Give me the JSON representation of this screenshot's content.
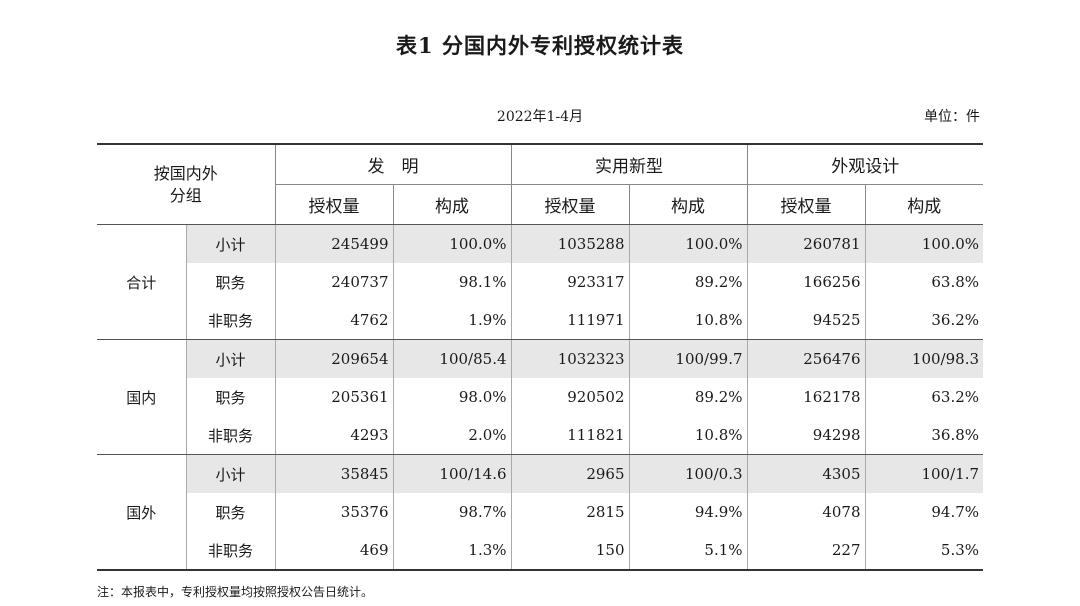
{
  "title": "表1  分国内外专利授权统计表",
  "period": "2022年1-4月",
  "unit": "单位：件",
  "header": {
    "group_label_line1": "按国内外",
    "group_label_line2": "分组",
    "categories": [
      "发　明",
      "实用新型",
      "外观设计"
    ],
    "count_label": "授权量",
    "share_label": "构成"
  },
  "groups": [
    {
      "name": "合计",
      "rows": [
        {
          "label": "小计",
          "values": [
            "245499",
            "100.0%",
            "1035288",
            "100.0%",
            "260781",
            "100.0%"
          ]
        },
        {
          "label": "职务",
          "values": [
            "240737",
            "98.1%",
            "923317",
            "89.2%",
            "166256",
            "63.8%"
          ]
        },
        {
          "label": "非职务",
          "values": [
            "4762",
            "1.9%",
            "111971",
            "10.8%",
            "94525",
            "36.2%"
          ]
        }
      ]
    },
    {
      "name": "国内",
      "rows": [
        {
          "label": "小计",
          "values": [
            "209654",
            "100/85.4",
            "1032323",
            "100/99.7",
            "256476",
            "100/98.3"
          ]
        },
        {
          "label": "职务",
          "values": [
            "205361",
            "98.0%",
            "920502",
            "89.2%",
            "162178",
            "63.2%"
          ]
        },
        {
          "label": "非职务",
          "values": [
            "4293",
            "2.0%",
            "111821",
            "10.8%",
            "94298",
            "36.8%"
          ]
        }
      ]
    },
    {
      "name": "国外",
      "rows": [
        {
          "label": "小计",
          "values": [
            "35845",
            "100/14.6",
            "2965",
            "100/0.3",
            "4305",
            "100/1.7"
          ]
        },
        {
          "label": "职务",
          "values": [
            "35376",
            "98.7%",
            "2815",
            "94.9%",
            "4078",
            "94.7%"
          ]
        },
        {
          "label": "非职务",
          "values": [
            "469",
            "1.3%",
            "150",
            "5.1%",
            "227",
            "5.3%"
          ]
        }
      ]
    }
  ],
  "note": "注：本报表中，专利授权量均按照授权公告日统计。"
}
